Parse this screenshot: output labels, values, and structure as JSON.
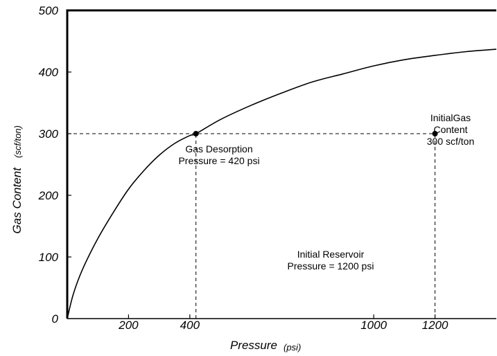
{
  "chart_data": {
    "type": "line",
    "title": "",
    "xlabel": "Pressure",
    "xlabel_unit": "(psi)",
    "ylabel": "Gas Content",
    "ylabel_unit": "(scf/ton)",
    "xlim": [
      0,
      1400
    ],
    "ylim": [
      0,
      500
    ],
    "x_ticks": [
      200,
      400,
      1000,
      1200
    ],
    "x_tick_labels": [
      "200",
      "400",
      "1000",
      "1200"
    ],
    "y_ticks": [
      0,
      100,
      200,
      300,
      400,
      500
    ],
    "y_tick_labels": [
      "0",
      "100",
      "200",
      "300",
      "400",
      "500"
    ],
    "grid": false,
    "series": [
      {
        "color": "#000000",
        "x": [
          0,
          20,
          50,
          100,
          150,
          200,
          250,
          300,
          350,
          400,
          420,
          500,
          600,
          700,
          800,
          900,
          1000,
          1100,
          1200,
          1300,
          1400
        ],
        "y": [
          0,
          40,
          80,
          130,
          172,
          210,
          240,
          265,
          284,
          297,
          300,
          323,
          346,
          366,
          384,
          397,
          410,
          420,
          427,
          433,
          437
        ]
      }
    ],
    "reference_lines": [
      {
        "style": "dashed",
        "points": [
          [
            0,
            300
          ],
          [
            1200,
            300
          ]
        ]
      },
      {
        "style": "dashed",
        "points": [
          [
            420,
            0
          ],
          [
            420,
            300
          ]
        ]
      },
      {
        "style": "dashed",
        "points": [
          [
            1200,
            0
          ],
          [
            1200,
            300
          ]
        ]
      }
    ],
    "markers": [
      {
        "x": 420,
        "y": 300
      },
      {
        "x": 1200,
        "y": 300
      }
    ],
    "annotations": [
      {
        "lines": [
          "Gas Desorption",
          "Pressure = 420 psi"
        ]
      },
      {
        "lines": [
          "InitialGas",
          "Content",
          "300 scf/ton"
        ]
      },
      {
        "lines": [
          "Initial Reservoir",
          "Pressure = 1200 psi"
        ]
      }
    ]
  }
}
